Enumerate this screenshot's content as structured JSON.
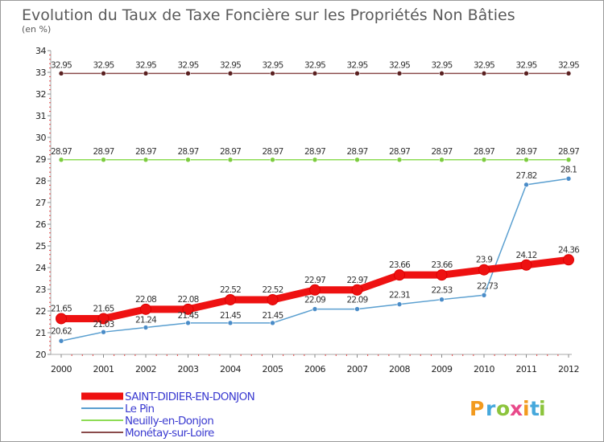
{
  "chart_data": {
    "type": "line",
    "title": "Evolution du Taux de Taxe Foncière sur les Propriétés Non Bâties",
    "subtitle": "(en %)",
    "x": [
      "2000",
      "2001",
      "2002",
      "2003",
      "2004",
      "2005",
      "2006",
      "2007",
      "2008",
      "2009",
      "2010",
      "2011",
      "2012"
    ],
    "ylim": [
      20,
      34
    ],
    "yticks": [
      "20",
      "21",
      "22",
      "23",
      "24",
      "25",
      "26",
      "27",
      "28",
      "29",
      "30",
      "31",
      "32",
      "33",
      "34"
    ],
    "grid": false,
    "legend_position": "bottom-left",
    "series": [
      {
        "name": "SAINT-DIDIER-EN-DONJON",
        "color": "#ee1111",
        "marker_color": "#ee1111",
        "values": [
          21.65,
          21.65,
          22.08,
          22.08,
          22.52,
          22.52,
          22.97,
          22.97,
          23.66,
          23.66,
          23.9,
          24.12,
          24.36
        ],
        "labels": [
          "21.65",
          "21.65",
          "22.08",
          "22.08",
          "22.52",
          "22.52",
          "22.97",
          "22.97",
          "23.66",
          "23.66",
          "23.9",
          "24.12",
          "24.36"
        ]
      },
      {
        "name": "Le Pin",
        "color": "#5a9fd0",
        "marker_color": "#4a8cc8",
        "values": [
          20.62,
          21.03,
          21.24,
          21.45,
          21.45,
          21.45,
          22.09,
          22.09,
          22.31,
          22.53,
          22.73,
          27.82,
          28.1
        ],
        "labels": [
          "20.62",
          "21.03",
          "21.24",
          "21.45",
          "21.45",
          "21.45",
          "22.09",
          "22.09",
          "22.31",
          "22.53",
          "22.73",
          "27.82",
          "28.1"
        ]
      },
      {
        "name": "Neuilly-en-Donjon",
        "color": "#8edc55",
        "marker_color": "#7ccc3e",
        "values": [
          28.97,
          28.97,
          28.97,
          28.97,
          28.97,
          28.97,
          28.97,
          28.97,
          28.97,
          28.97,
          28.97,
          28.97,
          28.97
        ],
        "labels": [
          "28.97",
          "28.97",
          "28.97",
          "28.97",
          "28.97",
          "28.97",
          "28.97",
          "28.97",
          "28.97",
          "28.97",
          "28.97",
          "28.97",
          "28.97"
        ]
      },
      {
        "name": "Monétay-sur-Loire",
        "color": "#8a4b4b",
        "marker_color": "#5a2020",
        "values": [
          32.95,
          32.95,
          32.95,
          32.95,
          32.95,
          32.95,
          32.95,
          32.95,
          32.95,
          32.95,
          32.95,
          32.95,
          32.95
        ],
        "labels": [
          "32.95",
          "32.95",
          "32.95",
          "32.95",
          "32.95",
          "32.95",
          "32.95",
          "32.95",
          "32.95",
          "32.95",
          "32.95",
          "32.95",
          "32.95"
        ]
      }
    ]
  },
  "logo": {
    "letters": [
      "P",
      "r",
      "o",
      "x",
      "i",
      "t",
      "i"
    ],
    "colors": [
      "#f29a1e",
      "#46a8dc",
      "#8cc43c",
      "#e84a8a",
      "#f29a1e",
      "#46a8dc",
      "#8cc43c"
    ]
  }
}
